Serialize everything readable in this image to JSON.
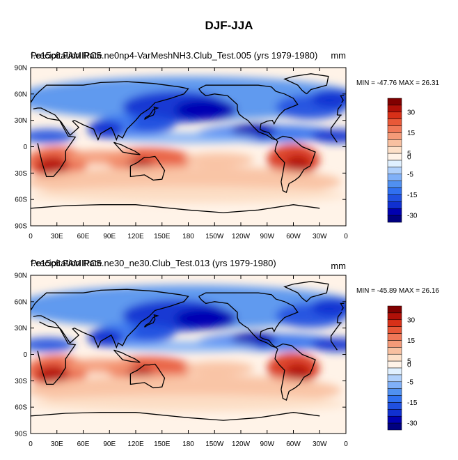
{
  "figure": {
    "title": "DJF-JJA"
  },
  "colors": {
    "levels": [
      "#000080",
      "#0000b0",
      "#1030d0",
      "#2050e0",
      "#3070f0",
      "#5090f0",
      "#80b0f8",
      "#b0d0fb",
      "#e0f0ff",
      "#fff3e8",
      "#fde0c8",
      "#f8c0a0",
      "#f49a78",
      "#f07858",
      "#e85838",
      "#d83018",
      "#b01008",
      "#800000"
    ],
    "land": "#000000",
    "frame": "#000000"
  },
  "chart_data": [
    {
      "type": "heatmap",
      "title_left_overlap_a": "Precipitation Rate",
      "title_left_overlap_b": "f.e15c6.FAMIPC5.ne0np4-VarMeshNH3.Club_Test.005 (yrs 1979-1980)",
      "units": "mm",
      "stats": "MIN = -47.76 MAX =  26.31",
      "min": -47.76,
      "max": 26.31,
      "xlim": [
        0,
        360
      ],
      "ylim": [
        -90,
        90
      ],
      "x_ticks": [
        "0",
        "30E",
        "60E",
        "90E",
        "120E",
        "150E",
        "180",
        "150W",
        "120W",
        "90W",
        "60W",
        "30W",
        "0"
      ],
      "y_ticks": [
        "90N",
        "60N",
        "30N",
        "0",
        "30S",
        "60S",
        "90S"
      ],
      "colorbar_labels": [
        "30",
        "15",
        "5",
        "0",
        "-5",
        "-15",
        "-30"
      ],
      "colorbar_levels": [
        -40,
        -35,
        -30,
        -25,
        -20,
        -15,
        -10,
        -5,
        -2,
        0,
        2,
        5,
        10,
        15,
        20,
        25,
        30
      ]
    },
    {
      "type": "heatmap",
      "title_left_overlap_a": "Precipitation Rate",
      "title_left_overlap_b": "f.e15c6.FAMIPC5.ne30_ne30.Club_Test.013 (yrs 1979-1980)",
      "units": "mm",
      "stats": "MIN = -45.89 MAX =  26.16",
      "min": -45.89,
      "max": 26.16,
      "xlim": [
        0,
        360
      ],
      "ylim": [
        -90,
        90
      ],
      "x_ticks": [
        "0",
        "30E",
        "60E",
        "90E",
        "120E",
        "150E",
        "180",
        "150W",
        "120W",
        "90W",
        "60W",
        "30W",
        "0"
      ],
      "y_ticks": [
        "90N",
        "60N",
        "30N",
        "0",
        "30S",
        "60S",
        "90S"
      ],
      "colorbar_labels": [
        "30",
        "15",
        "5",
        "0",
        "-5",
        "-15",
        "-30"
      ],
      "colorbar_levels": [
        -40,
        -35,
        -30,
        -25,
        -20,
        -15,
        -10,
        -5,
        -2,
        0,
        2,
        5,
        10,
        15,
        20,
        25,
        30
      ]
    }
  ]
}
